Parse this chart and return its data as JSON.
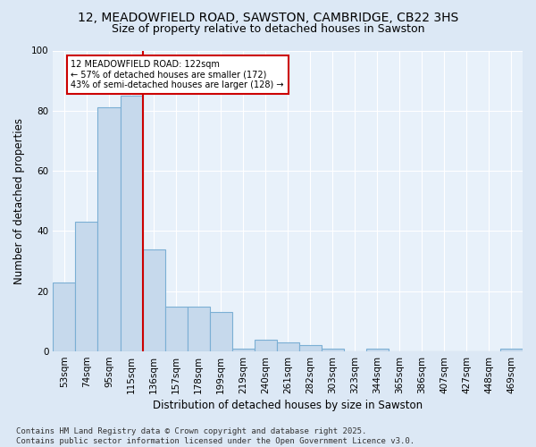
{
  "title_line1": "12, MEADOWFIELD ROAD, SAWSTON, CAMBRIDGE, CB22 3HS",
  "title_line2": "Size of property relative to detached houses in Sawston",
  "xlabel": "Distribution of detached houses by size in Sawston",
  "ylabel": "Number of detached properties",
  "categories": [
    "53sqm",
    "74sqm",
    "95sqm",
    "115sqm",
    "136sqm",
    "157sqm",
    "178sqm",
    "199sqm",
    "219sqm",
    "240sqm",
    "261sqm",
    "282sqm",
    "303sqm",
    "323sqm",
    "344sqm",
    "365sqm",
    "386sqm",
    "407sqm",
    "427sqm",
    "448sqm",
    "469sqm"
  ],
  "values": [
    23,
    43,
    81,
    85,
    34,
    15,
    15,
    13,
    1,
    4,
    3,
    2,
    1,
    0,
    1,
    0,
    0,
    0,
    0,
    0,
    1
  ],
  "bar_color": "#c6d9ec",
  "bar_edgecolor": "#7bafd4",
  "vline_color": "#cc0000",
  "annotation_text": "12 MEADOWFIELD ROAD: 122sqm\n← 57% of detached houses are smaller (172)\n43% of semi-detached houses are larger (128) →",
  "annotation_box_color": "#ffffff",
  "annotation_border_color": "#cc0000",
  "ylim": [
    0,
    100
  ],
  "yticks": [
    0,
    20,
    40,
    60,
    80,
    100
  ],
  "footnote": "Contains HM Land Registry data © Crown copyright and database right 2025.\nContains public sector information licensed under the Open Government Licence v3.0.",
  "bg_color": "#dce8f5",
  "plot_bg_color": "#e8f1fa",
  "grid_color": "#ffffff",
  "title_fontsize": 10,
  "subtitle_fontsize": 9,
  "axis_label_fontsize": 8.5,
  "tick_fontsize": 7.5,
  "annotation_fontsize": 7,
  "footnote_fontsize": 6.5
}
